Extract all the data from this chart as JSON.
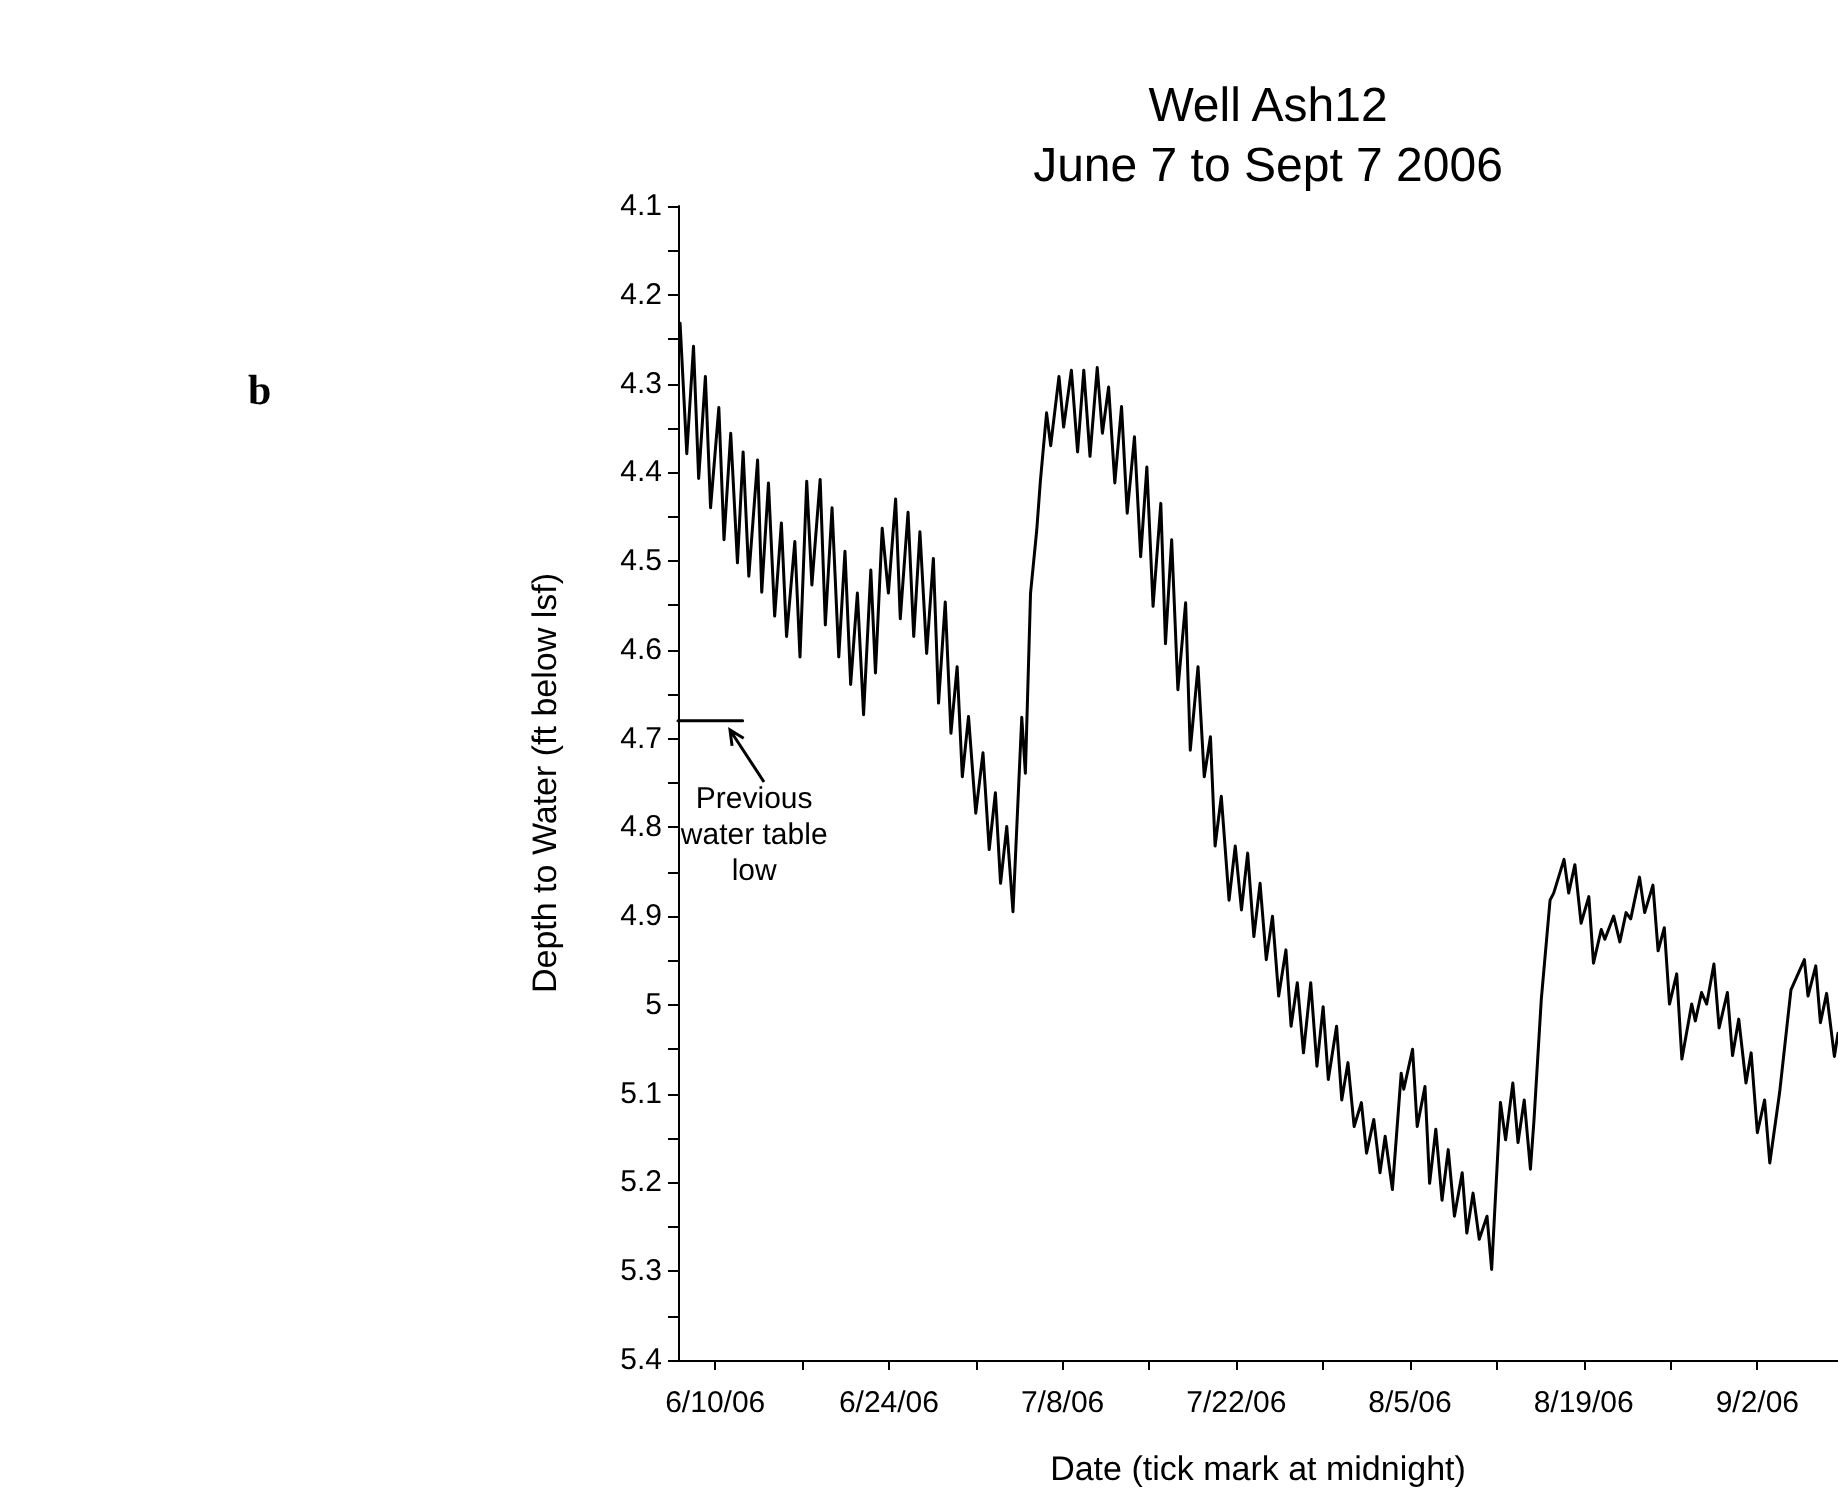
{
  "chart_data": {
    "type": "line",
    "title": "Well Ash12",
    "subtitle": "June 7 to Sept 7 2006",
    "xlabel": "Date (tick mark at midnight)",
    "ylabel": "Depth to Water (ft below lsf)",
    "xlim": [
      "2006-06-07",
      "2006-09-08T12:00"
    ],
    "ylim": [
      5.4,
      4.1
    ],
    "xticks": [
      {
        "value": "2006-06-10",
        "label": "6/10/06"
      },
      {
        "value": "2006-06-17",
        "label": null
      },
      {
        "value": "2006-06-24",
        "label": "6/24/06"
      },
      {
        "value": "2006-07-01",
        "label": null
      },
      {
        "value": "2006-07-08",
        "label": "7/8/06"
      },
      {
        "value": "2006-07-15",
        "label": null
      },
      {
        "value": "2006-07-22",
        "label": "7/22/06"
      },
      {
        "value": "2006-07-29",
        "label": null
      },
      {
        "value": "2006-08-05",
        "label": "8/5/06"
      },
      {
        "value": "2006-08-12",
        "label": null
      },
      {
        "value": "2006-08-19",
        "label": "8/19/06"
      },
      {
        "value": "2006-08-26",
        "label": null
      },
      {
        "value": "2006-09-02",
        "label": "9/2/06"
      }
    ],
    "yticks": [
      4.1,
      {
        "value": 4.15,
        "label": null
      },
      4.2,
      {
        "value": 4.25,
        "label": null
      },
      4.3,
      {
        "value": 4.35,
        "label": null
      },
      4.4,
      {
        "value": 4.45,
        "label": null
      },
      4.5,
      {
        "value": 4.55,
        "label": null
      },
      4.6,
      {
        "value": 4.65,
        "label": null
      },
      4.7,
      {
        "value": 4.75,
        "label": null
      },
      4.8,
      {
        "value": 4.85,
        "label": null
      },
      4.9,
      {
        "value": 4.95,
        "label": null
      },
      5,
      {
        "value": 5.05,
        "label": null
      },
      5.1,
      {
        "value": 5.15,
        "label": null
      },
      5.2,
      {
        "value": 5.25,
        "label": null
      },
      5.3,
      {
        "value": 5.35,
        "label": null
      },
      5.4
    ],
    "grid": false,
    "marker": "none",
    "line_style": "solid",
    "series": [
      {
        "color": "#000000",
        "x": [
          "2006-06-07T04:00",
          "2006-06-07T17:00",
          "2006-06-08T06:00",
          "2006-06-08T16:00",
          "2006-06-09T05:00",
          "2006-06-09T15:00",
          "2006-06-10T07:00",
          "2006-06-10T17:00",
          "2006-06-11T06:00",
          "2006-06-11T19:00",
          "2006-06-12T06:00",
          "2006-06-12T17:00",
          "2006-06-13T10:00",
          "2006-06-13T18:00",
          "2006-06-14T07:00",
          "2006-06-14T19:00",
          "2006-06-15T08:00",
          "2006-06-15T18:00",
          "2006-06-16T10:00",
          "2006-06-16T20:00",
          "2006-06-17T09:00",
          "2006-06-17T19:00",
          "2006-06-18T11:00",
          "2006-06-18T21:00",
          "2006-06-19T10:00",
          "2006-06-19T23:00",
          "2006-06-20T11:00",
          "2006-06-20T22:00",
          "2006-06-21T11:00",
          "2006-06-21T23:00",
          "2006-06-22T13:00",
          "2006-06-22T22:00",
          "2006-06-23T11:00",
          "2006-06-23T23:00",
          "2006-06-24T13:00",
          "2006-06-24T22:00",
          "2006-06-25T13:00",
          "2006-06-26T00:00",
          "2006-06-26T12:00",
          "2006-06-27T01:00",
          "2006-06-27T14:00",
          "2006-06-28T00:00",
          "2006-06-28T13:00",
          "2006-06-29T00:00",
          "2006-06-29T12:00",
          "2006-06-29T22:00",
          "2006-06-30T10:00",
          "2006-07-01T00:00",
          "2006-07-01T14:00",
          "2006-07-02T02:00",
          "2006-07-02T14:00",
          "2006-07-03T00:00",
          "2006-07-03T12:00",
          "2006-07-04T00:00",
          "2006-07-04T17:00",
          "2006-07-05T00:00",
          "2006-07-05T10:00",
          "2006-07-05T22:00",
          "2006-07-06T05:00",
          "2006-07-06T17:00",
          "2006-07-07T01:00",
          "2006-07-07T17:00",
          "2006-07-08T02:00",
          "2006-07-08T17:00",
          "2006-07-09T05:00",
          "2006-07-09T17:00",
          "2006-07-10T05:00",
          "2006-07-10T19:00",
          "2006-07-11T05:00",
          "2006-07-11T17:00",
          "2006-07-12T05:00",
          "2006-07-12T18:00",
          "2006-07-13T05:00",
          "2006-07-13T19:00",
          "2006-07-14T07:00",
          "2006-07-14T19:00",
          "2006-07-15T07:00",
          "2006-07-15T22:00",
          "2006-07-16T07:00",
          "2006-07-16T19:00",
          "2006-07-17T07:00",
          "2006-07-17T22:00",
          "2006-07-18T07:00",
          "2006-07-18T22:00",
          "2006-07-19T10:00",
          "2006-07-19T22:00",
          "2006-07-20T07:00",
          "2006-07-20T19:00",
          "2006-07-21T10:00",
          "2006-07-21T22:00",
          "2006-07-22T10:00",
          "2006-07-22T22:00",
          "2006-07-23T10:00",
          "2006-07-23T22:00",
          "2006-07-24T10:00",
          "2006-07-24T22:00",
          "2006-07-25T10:00",
          "2006-07-26T00:00",
          "2006-07-26T10:00",
          "2006-07-26T22:00",
          "2006-07-27T10:00",
          "2006-07-28T00:00",
          "2006-07-28T12:00",
          "2006-07-29T00:00",
          "2006-07-29T10:00",
          "2006-07-30T02:00",
          "2006-07-30T12:00",
          "2006-07-31T00:00",
          "2006-07-31T12:00",
          "2006-08-01T02:00",
          "2006-08-01T12:00",
          "2006-08-02T02:00",
          "2006-08-02T14:00",
          "2006-08-03T00:00",
          "2006-08-03T14:00",
          "2006-08-04T07:00",
          "2006-08-04T12:00",
          "2006-08-05T05:00",
          "2006-08-05T14:00",
          "2006-08-06T05:00",
          "2006-08-06T14:00",
          "2006-08-07T02:00",
          "2006-08-07T14:00",
          "2006-08-08T02:00",
          "2006-08-08T14:00",
          "2006-08-09T05:00",
          "2006-08-09T14:00",
          "2006-08-10T02:00",
          "2006-08-10T14:00",
          "2006-08-11T05:00",
          "2006-08-11T14:00",
          "2006-08-12T07:00",
          "2006-08-12T17:00",
          "2006-08-13T07:00",
          "2006-08-13T17:00",
          "2006-08-14T05:00",
          "2006-08-14T17:00",
          "2006-08-15T00:00",
          "2006-08-15T14:00",
          "2006-08-16T07:00",
          "2006-08-16T14:00",
          "2006-08-17T10:00",
          "2006-08-17T19:00",
          "2006-08-18T07:00",
          "2006-08-18T19:00",
          "2006-08-19T10:00",
          "2006-08-19T19:00",
          "2006-08-20T10:00",
          "2006-08-20T17:00",
          "2006-08-21T10:00",
          "2006-08-21T22:00",
          "2006-08-22T10:00",
          "2006-08-22T19:00",
          "2006-08-23T12:00",
          "2006-08-23T22:00",
          "2006-08-24T14:00",
          "2006-08-25T00:00",
          "2006-08-25T12:00",
          "2006-08-25T22:00",
          "2006-08-26T12:00",
          "2006-08-26T22:00",
          "2006-08-27T17:00",
          "2006-08-28T00:00",
          "2006-08-28T12:00",
          "2006-08-28T22:00",
          "2006-08-29T12:00",
          "2006-08-29T22:00",
          "2006-08-30T14:00",
          "2006-08-31T00:00",
          "2006-08-31T12:00",
          "2006-09-01T02:00",
          "2006-09-01T12:00",
          "2006-09-02T00:00",
          "2006-09-02T14:00",
          "2006-09-03T00:00",
          "2006-09-03T19:00",
          "2006-09-04T17:00",
          "2006-09-05T19:00",
          "2006-09-06T02:00",
          "2006-09-06T17:00",
          "2006-09-07T02:00",
          "2006-09-07T14:00",
          "2006-09-08T05:00",
          "2006-09-08T12:00"
        ],
        "values": [
          4.232,
          4.379,
          4.258,
          4.407,
          4.292,
          4.44,
          4.327,
          4.476,
          4.356,
          4.502,
          4.377,
          4.517,
          4.386,
          4.535,
          4.412,
          4.562,
          4.457,
          4.585,
          4.478,
          4.608,
          4.41,
          4.527,
          4.408,
          4.572,
          4.44,
          4.608,
          4.489,
          4.639,
          4.536,
          4.673,
          4.51,
          4.626,
          4.463,
          4.536,
          4.43,
          4.565,
          4.445,
          4.585,
          4.467,
          4.604,
          4.497,
          4.66,
          4.546,
          4.694,
          4.619,
          4.743,
          4.675,
          4.784,
          4.716,
          4.825,
          4.761,
          4.863,
          4.799,
          4.895,
          4.676,
          4.739,
          4.536,
          4.465,
          4.41,
          4.333,
          4.37,
          4.292,
          4.349,
          4.285,
          4.377,
          4.285,
          4.382,
          4.282,
          4.356,
          4.304,
          4.412,
          4.326,
          4.446,
          4.36,
          4.495,
          4.394,
          4.551,
          4.435,
          4.593,
          4.476,
          4.645,
          4.547,
          4.713,
          4.619,
          4.743,
          4.698,
          4.821,
          4.765,
          4.882,
          4.821,
          4.893,
          4.829,
          4.923,
          4.863,
          4.949,
          4.9,
          4.99,
          4.938,
          5.024,
          4.975,
          5.054,
          4.975,
          5.069,
          5.002,
          5.084,
          5.024,
          5.107,
          5.065,
          5.137,
          5.11,
          5.167,
          5.129,
          5.189,
          5.148,
          5.208,
          5.077,
          5.095,
          5.05,
          5.137,
          5.092,
          5.201,
          5.14,
          5.22,
          5.163,
          5.238,
          5.189,
          5.257,
          5.212,
          5.264,
          5.238,
          5.298,
          5.11,
          5.152,
          5.088,
          5.155,
          5.107,
          5.185,
          5.129,
          4.994,
          4.882,
          4.874,
          4.836,
          4.874,
          4.842,
          4.908,
          4.878,
          4.953,
          4.915,
          4.926,
          4.9,
          4.929,
          4.896,
          4.903,
          4.856,
          4.896,
          4.865,
          4.939,
          4.913,
          4.999,
          4.965,
          5.061,
          4.999,
          5.018,
          4.986,
          4.999,
          4.954,
          5.026,
          4.986,
          5.057,
          5.016,
          5.088,
          5.054,
          5.144,
          5.107,
          5.178,
          5.099,
          4.983,
          4.949,
          4.99,
          4.956,
          5.02,
          4.987,
          5.058,
          5.032
        ]
      },
      {
        "color": "#000000",
        "x": [
          "2006-06-07T00:00",
          "2006-06-12T05:00"
        ],
        "values": [
          4.68,
          4.68
        ]
      }
    ],
    "annotations": [
      {
        "text": "Previous water table low",
        "x": "2006-06-11T05:00",
        "y": 4.69
      },
      "b"
    ]
  }
}
